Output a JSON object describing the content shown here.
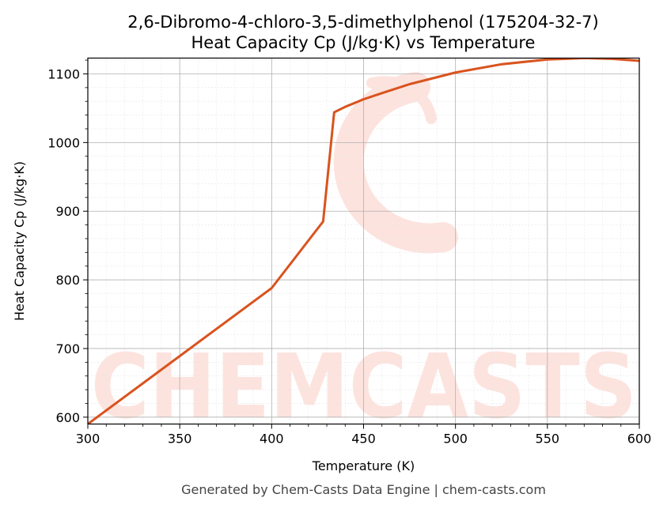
{
  "title_line1": "2,6-Dibromo-4-chloro-3,5-dimethylphenol (175204-32-7)",
  "title_line2": "Heat Capacity Cp (J/kg·K) vs Temperature",
  "footer": "Generated by Chem-Casts Data Engine | chem-casts.com",
  "watermark": "CHEMCASTS",
  "colors": {
    "line": "#d9531e",
    "watermark": "#fde3de",
    "grid_major": "#b0b0b0",
    "grid_minor": "#e6e6e6"
  },
  "chart_data": {
    "type": "line",
    "xlabel": "Temperature (K)",
    "ylabel": "Heat Capacity Cp (J/kg·K)",
    "xlim": [
      300,
      600
    ],
    "ylim": [
      590,
      1123
    ],
    "xticks": [
      300,
      350,
      400,
      450,
      500,
      550,
      600
    ],
    "yticks": [
      600,
      700,
      800,
      900,
      1000,
      1100
    ],
    "grid": true,
    "series": [
      {
        "x": [
          300,
          350,
          400,
          428,
          434,
          440,
          450,
          460,
          475,
          500,
          525,
          550,
          570,
          585,
          600
        ],
        "y": [
          590,
          689,
          788,
          885,
          1044,
          1052,
          1063,
          1072,
          1085,
          1102,
          1114,
          1121,
          1123,
          1122,
          1119
        ]
      }
    ]
  }
}
